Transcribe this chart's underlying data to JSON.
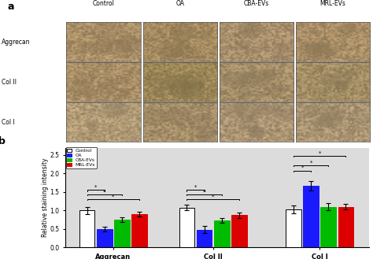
{
  "panel_b": {
    "groups": [
      "Aggrecan",
      "Col II",
      "Col I"
    ],
    "series": [
      "Control",
      "OA",
      "CBA-EVs",
      "MRL-EVs"
    ],
    "colors": [
      "#ffffff",
      "#1a1aff",
      "#00bb00",
      "#dd0000"
    ],
    "edge_colors": [
      "#000000",
      "#1a1aff",
      "#00bb00",
      "#dd0000"
    ],
    "values": [
      [
        1.0,
        0.5,
        0.75,
        0.9
      ],
      [
        1.08,
        0.48,
        0.73,
        0.87
      ],
      [
        1.03,
        1.67,
        1.1,
        1.1
      ]
    ],
    "errors": [
      [
        0.09,
        0.06,
        0.07,
        0.07
      ],
      [
        0.07,
        0.09,
        0.07,
        0.07
      ],
      [
        0.1,
        0.13,
        0.1,
        0.07
      ]
    ],
    "ylabel": "Relative staining intensity",
    "ylim": [
      0.0,
      2.7
    ],
    "yticks": [
      0.0,
      0.5,
      1.0,
      1.5,
      2.0,
      2.5
    ],
    "background_color": "#dcdcdc"
  },
  "col_labels": [
    "Control",
    "OA",
    "CBA-EVs",
    "MRL-EVs"
  ],
  "row_labels": [
    "Aggrecan",
    "Col II",
    "Col I"
  ],
  "tissue_bg_colors": [
    [
      "#c9a97a",
      "#c3a472",
      "#c8aa80",
      "#c9a97a"
    ],
    [
      "#c9a97a",
      "#b9a068",
      "#c2a87c",
      "#c1a878"
    ],
    [
      "#d2b88c",
      "#c3a87c",
      "#cbb088",
      "#cab088"
    ]
  ],
  "panel_a_bg": "#ffffff",
  "figure_bg": "#ffffff"
}
